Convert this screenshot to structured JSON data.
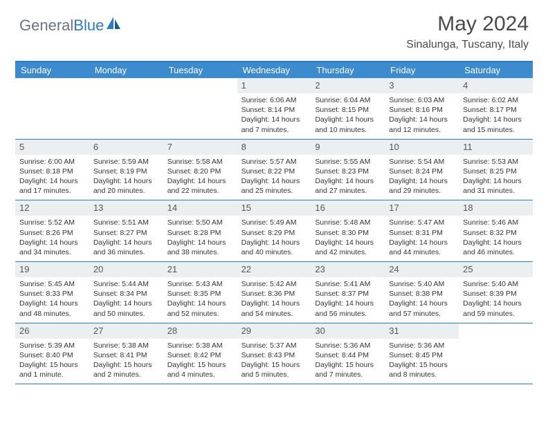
{
  "colors": {
    "brand_blue": "#2d7cc0",
    "header_blue": "#3b8bce",
    "gray_text": "#4a4a4a",
    "daynum_bg": "#eceff2",
    "body_text": "#333333"
  },
  "typography": {
    "title_fontsize": 30,
    "location_fontsize": 16,
    "dayheader_fontsize": 13,
    "daynum_fontsize": 13,
    "cell_fontsize": 10.5
  },
  "logo": {
    "text_gray": "General",
    "text_blue": "Blue"
  },
  "title": "May 2024",
  "location": "Sinalunga, Tuscany, Italy",
  "day_headers": [
    "Sunday",
    "Monday",
    "Tuesday",
    "Wednesday",
    "Thursday",
    "Friday",
    "Saturday"
  ],
  "weeks": [
    [
      {
        "empty": true
      },
      {
        "empty": true
      },
      {
        "empty": true
      },
      {
        "day": "1",
        "sunrise": "Sunrise: 6:06 AM",
        "sunset": "Sunset: 8:14 PM",
        "daylight": "Daylight: 14 hours and 7 minutes."
      },
      {
        "day": "2",
        "sunrise": "Sunrise: 6:04 AM",
        "sunset": "Sunset: 8:15 PM",
        "daylight": "Daylight: 14 hours and 10 minutes."
      },
      {
        "day": "3",
        "sunrise": "Sunrise: 6:03 AM",
        "sunset": "Sunset: 8:16 PM",
        "daylight": "Daylight: 14 hours and 12 minutes."
      },
      {
        "day": "4",
        "sunrise": "Sunrise: 6:02 AM",
        "sunset": "Sunset: 8:17 PM",
        "daylight": "Daylight: 14 hours and 15 minutes."
      }
    ],
    [
      {
        "day": "5",
        "sunrise": "Sunrise: 6:00 AM",
        "sunset": "Sunset: 8:18 PM",
        "daylight": "Daylight: 14 hours and 17 minutes."
      },
      {
        "day": "6",
        "sunrise": "Sunrise: 5:59 AM",
        "sunset": "Sunset: 8:19 PM",
        "daylight": "Daylight: 14 hours and 20 minutes."
      },
      {
        "day": "7",
        "sunrise": "Sunrise: 5:58 AM",
        "sunset": "Sunset: 8:20 PM",
        "daylight": "Daylight: 14 hours and 22 minutes."
      },
      {
        "day": "8",
        "sunrise": "Sunrise: 5:57 AM",
        "sunset": "Sunset: 8:22 PM",
        "daylight": "Daylight: 14 hours and 25 minutes."
      },
      {
        "day": "9",
        "sunrise": "Sunrise: 5:55 AM",
        "sunset": "Sunset: 8:23 PM",
        "daylight": "Daylight: 14 hours and 27 minutes."
      },
      {
        "day": "10",
        "sunrise": "Sunrise: 5:54 AM",
        "sunset": "Sunset: 8:24 PM",
        "daylight": "Daylight: 14 hours and 29 minutes."
      },
      {
        "day": "11",
        "sunrise": "Sunrise: 5:53 AM",
        "sunset": "Sunset: 8:25 PM",
        "daylight": "Daylight: 14 hours and 31 minutes."
      }
    ],
    [
      {
        "day": "12",
        "sunrise": "Sunrise: 5:52 AM",
        "sunset": "Sunset: 8:26 PM",
        "daylight": "Daylight: 14 hours and 34 minutes."
      },
      {
        "day": "13",
        "sunrise": "Sunrise: 5:51 AM",
        "sunset": "Sunset: 8:27 PM",
        "daylight": "Daylight: 14 hours and 36 minutes."
      },
      {
        "day": "14",
        "sunrise": "Sunrise: 5:50 AM",
        "sunset": "Sunset: 8:28 PM",
        "daylight": "Daylight: 14 hours and 38 minutes."
      },
      {
        "day": "15",
        "sunrise": "Sunrise: 5:49 AM",
        "sunset": "Sunset: 8:29 PM",
        "daylight": "Daylight: 14 hours and 40 minutes."
      },
      {
        "day": "16",
        "sunrise": "Sunrise: 5:48 AM",
        "sunset": "Sunset: 8:30 PM",
        "daylight": "Daylight: 14 hours and 42 minutes."
      },
      {
        "day": "17",
        "sunrise": "Sunrise: 5:47 AM",
        "sunset": "Sunset: 8:31 PM",
        "daylight": "Daylight: 14 hours and 44 minutes."
      },
      {
        "day": "18",
        "sunrise": "Sunrise: 5:46 AM",
        "sunset": "Sunset: 8:32 PM",
        "daylight": "Daylight: 14 hours and 46 minutes."
      }
    ],
    [
      {
        "day": "19",
        "sunrise": "Sunrise: 5:45 AM",
        "sunset": "Sunset: 8:33 PM",
        "daylight": "Daylight: 14 hours and 48 minutes."
      },
      {
        "day": "20",
        "sunrise": "Sunrise: 5:44 AM",
        "sunset": "Sunset: 8:34 PM",
        "daylight": "Daylight: 14 hours and 50 minutes."
      },
      {
        "day": "21",
        "sunrise": "Sunrise: 5:43 AM",
        "sunset": "Sunset: 8:35 PM",
        "daylight": "Daylight: 14 hours and 52 minutes."
      },
      {
        "day": "22",
        "sunrise": "Sunrise: 5:42 AM",
        "sunset": "Sunset: 8:36 PM",
        "daylight": "Daylight: 14 hours and 54 minutes."
      },
      {
        "day": "23",
        "sunrise": "Sunrise: 5:41 AM",
        "sunset": "Sunset: 8:37 PM",
        "daylight": "Daylight: 14 hours and 56 minutes."
      },
      {
        "day": "24",
        "sunrise": "Sunrise: 5:40 AM",
        "sunset": "Sunset: 8:38 PM",
        "daylight": "Daylight: 14 hours and 57 minutes."
      },
      {
        "day": "25",
        "sunrise": "Sunrise: 5:40 AM",
        "sunset": "Sunset: 8:39 PM",
        "daylight": "Daylight: 14 hours and 59 minutes."
      }
    ],
    [
      {
        "day": "26",
        "sunrise": "Sunrise: 5:39 AM",
        "sunset": "Sunset: 8:40 PM",
        "daylight": "Daylight: 15 hours and 1 minute."
      },
      {
        "day": "27",
        "sunrise": "Sunrise: 5:38 AM",
        "sunset": "Sunset: 8:41 PM",
        "daylight": "Daylight: 15 hours and 2 minutes."
      },
      {
        "day": "28",
        "sunrise": "Sunrise: 5:38 AM",
        "sunset": "Sunset: 8:42 PM",
        "daylight": "Daylight: 15 hours and 4 minutes."
      },
      {
        "day": "29",
        "sunrise": "Sunrise: 5:37 AM",
        "sunset": "Sunset: 8:43 PM",
        "daylight": "Daylight: 15 hours and 5 minutes."
      },
      {
        "day": "30",
        "sunrise": "Sunrise: 5:36 AM",
        "sunset": "Sunset: 8:44 PM",
        "daylight": "Daylight: 15 hours and 7 minutes."
      },
      {
        "day": "31",
        "sunrise": "Sunrise: 5:36 AM",
        "sunset": "Sunset: 8:45 PM",
        "daylight": "Daylight: 15 hours and 8 minutes."
      },
      {
        "empty": true
      }
    ]
  ]
}
